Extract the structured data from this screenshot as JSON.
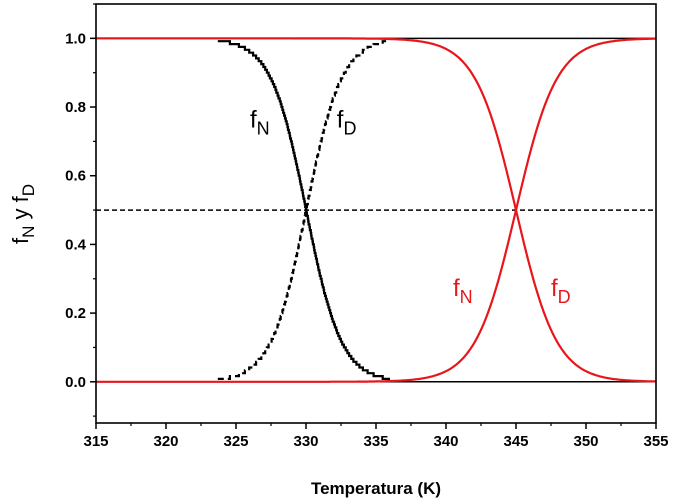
{
  "chart_data": {
    "type": "line",
    "title": "",
    "xlabel": "Temperatura (K)",
    "ylabel": {
      "parts": [
        "f",
        "N",
        " y f",
        "D"
      ]
    },
    "xlim": [
      315,
      355
    ],
    "ylim": [
      -0.12,
      1.1
    ],
    "xticks": [
      315,
      320,
      325,
      330,
      335,
      340,
      345,
      350,
      355
    ],
    "yticks": [
      0.0,
      0.2,
      0.4,
      0.6,
      0.8,
      1.0
    ],
    "ytick_labels": [
      "0.0",
      "0.2",
      "0.4",
      "0.6",
      "0.8",
      "1.0"
    ],
    "colors": {
      "black": "#000000",
      "red": "#e8161b"
    },
    "series": [
      {
        "name": "fN (Tm 330 K)",
        "color": "#000000",
        "dash": "solid",
        "kind": "native",
        "tm": 330,
        "width": 1.25,
        "range": [
          323.7,
          336.0
        ],
        "steps": true
      },
      {
        "name": "fD (Tm 330 K)",
        "color": "#000000",
        "dash": "dashed",
        "kind": "denatured",
        "tm": 330,
        "width": 1.25,
        "range": [
          323.7,
          336.0
        ],
        "steps": true
      },
      {
        "name": "fN (Tm 345 K)",
        "color": "#e8161b",
        "dash": "solid",
        "kind": "native",
        "tm": 345,
        "width": 1.45,
        "range": [
          315,
          355
        ],
        "steps": false
      },
      {
        "name": "fD (Tm 345 K)",
        "color": "#e8161b",
        "dash": "solid",
        "kind": "denatured",
        "tm": 345,
        "width": 1.45,
        "range": [
          315,
          355
        ],
        "steps": false
      }
    ],
    "reference_lines": [
      {
        "y": 1.0,
        "color": "#000000",
        "dash": "solid"
      },
      {
        "y": 0.0,
        "color": "#000000",
        "dash": "solid"
      },
      {
        "y": 0.5,
        "color": "#000000",
        "dash": "dashed"
      }
    ],
    "annotations": [
      {
        "text": "f",
        "sub": "N",
        "color": "#000000",
        "x": 326.0,
        "y": 0.74
      },
      {
        "text": "f",
        "sub": "D",
        "color": "#000000",
        "x": 332.2,
        "y": 0.74
      },
      {
        "text": "f",
        "sub": "N",
        "color": "#e8161b",
        "x": 340.5,
        "y": 0.25
      },
      {
        "text": "f",
        "sub": "D",
        "color": "#e8161b",
        "x": 347.5,
        "y": 0.25
      }
    ]
  }
}
